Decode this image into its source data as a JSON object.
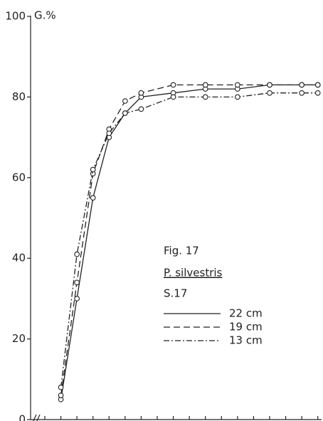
{
  "chart_data": {
    "type": "line",
    "y_label": "G.%",
    "annotations": [
      "Fig. 17",
      "P. silvestris",
      "S.17"
    ],
    "xlim": [
      0,
      17.5
    ],
    "xticks": [
      0,
      1,
      2,
      3,
      4,
      5,
      6,
      7,
      8,
      9,
      10,
      11,
      12,
      13,
      14,
      15,
      16,
      17
    ],
    "ylim": [
      0,
      100
    ],
    "yticks": [
      0,
      20,
      40,
      60,
      80,
      100
    ],
    "x": [
      1,
      2,
      3,
      4,
      5,
      6,
      8,
      10,
      12,
      14,
      16,
      17
    ],
    "series": [
      {
        "name": "22 cm",
        "color": "#222222",
        "dash": "solid",
        "values": [
          5,
          30,
          55,
          70,
          76,
          80,
          81,
          82,
          82,
          83,
          83,
          83
        ]
      },
      {
        "name": "19 cm",
        "color": "#222222",
        "dash": "dashed",
        "values": [
          6,
          34,
          61,
          72,
          79,
          81,
          83,
          83,
          83,
          83,
          83,
          83
        ]
      },
      {
        "name": "13 cm",
        "color": "#222222",
        "dash": "dashdot",
        "values": [
          8,
          41,
          62,
          71,
          76,
          77,
          80,
          80,
          80,
          81,
          81,
          81
        ]
      }
    ]
  }
}
